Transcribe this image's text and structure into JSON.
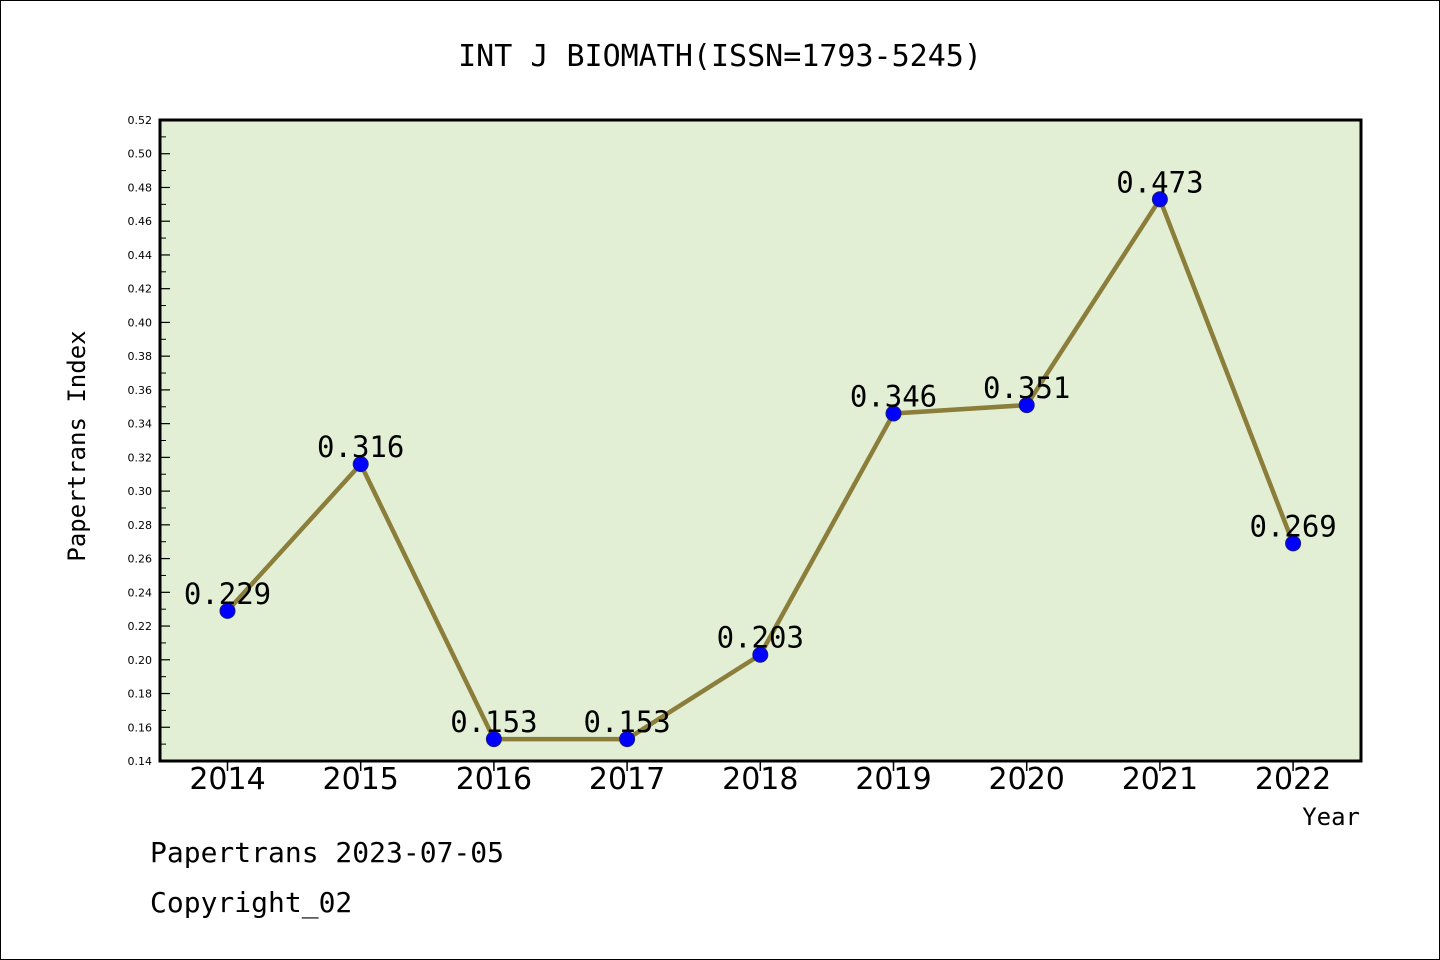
{
  "chart_data": {
    "type": "line",
    "title": "INT J BIOMATH(ISSN=1793-5245)",
    "xlabel": "Year",
    "ylabel": "Papertrans Index",
    "categories": [
      "2014",
      "2015",
      "2016",
      "2017",
      "2018",
      "2019",
      "2020",
      "2021",
      "2022"
    ],
    "values": [
      0.229,
      0.316,
      0.153,
      0.153,
      0.203,
      0.346,
      0.351,
      0.473,
      0.269
    ],
    "data_labels": [
      "0.229",
      "0.316",
      "0.153",
      "0.153",
      "0.203",
      "0.346",
      "0.351",
      "0.473",
      "0.269"
    ],
    "ylim": [
      0.14,
      0.52
    ],
    "y_ticks": [
      "0.14",
      "0.16",
      "0.18",
      "0.20",
      "0.22",
      "0.24",
      "0.26",
      "0.28",
      "0.30",
      "0.32",
      "0.34",
      "0.36",
      "0.38",
      "0.40",
      "0.42",
      "0.44",
      "0.46",
      "0.48",
      "0.50",
      "0.52"
    ],
    "grid": false,
    "colors": {
      "plot_background": "#e2efd4",
      "line": "#8b7d3a",
      "marker": "#0000ff"
    }
  },
  "footer": {
    "date_line": "Papertrans 2023-07-05",
    "copyright_line": "Copyright_02"
  }
}
